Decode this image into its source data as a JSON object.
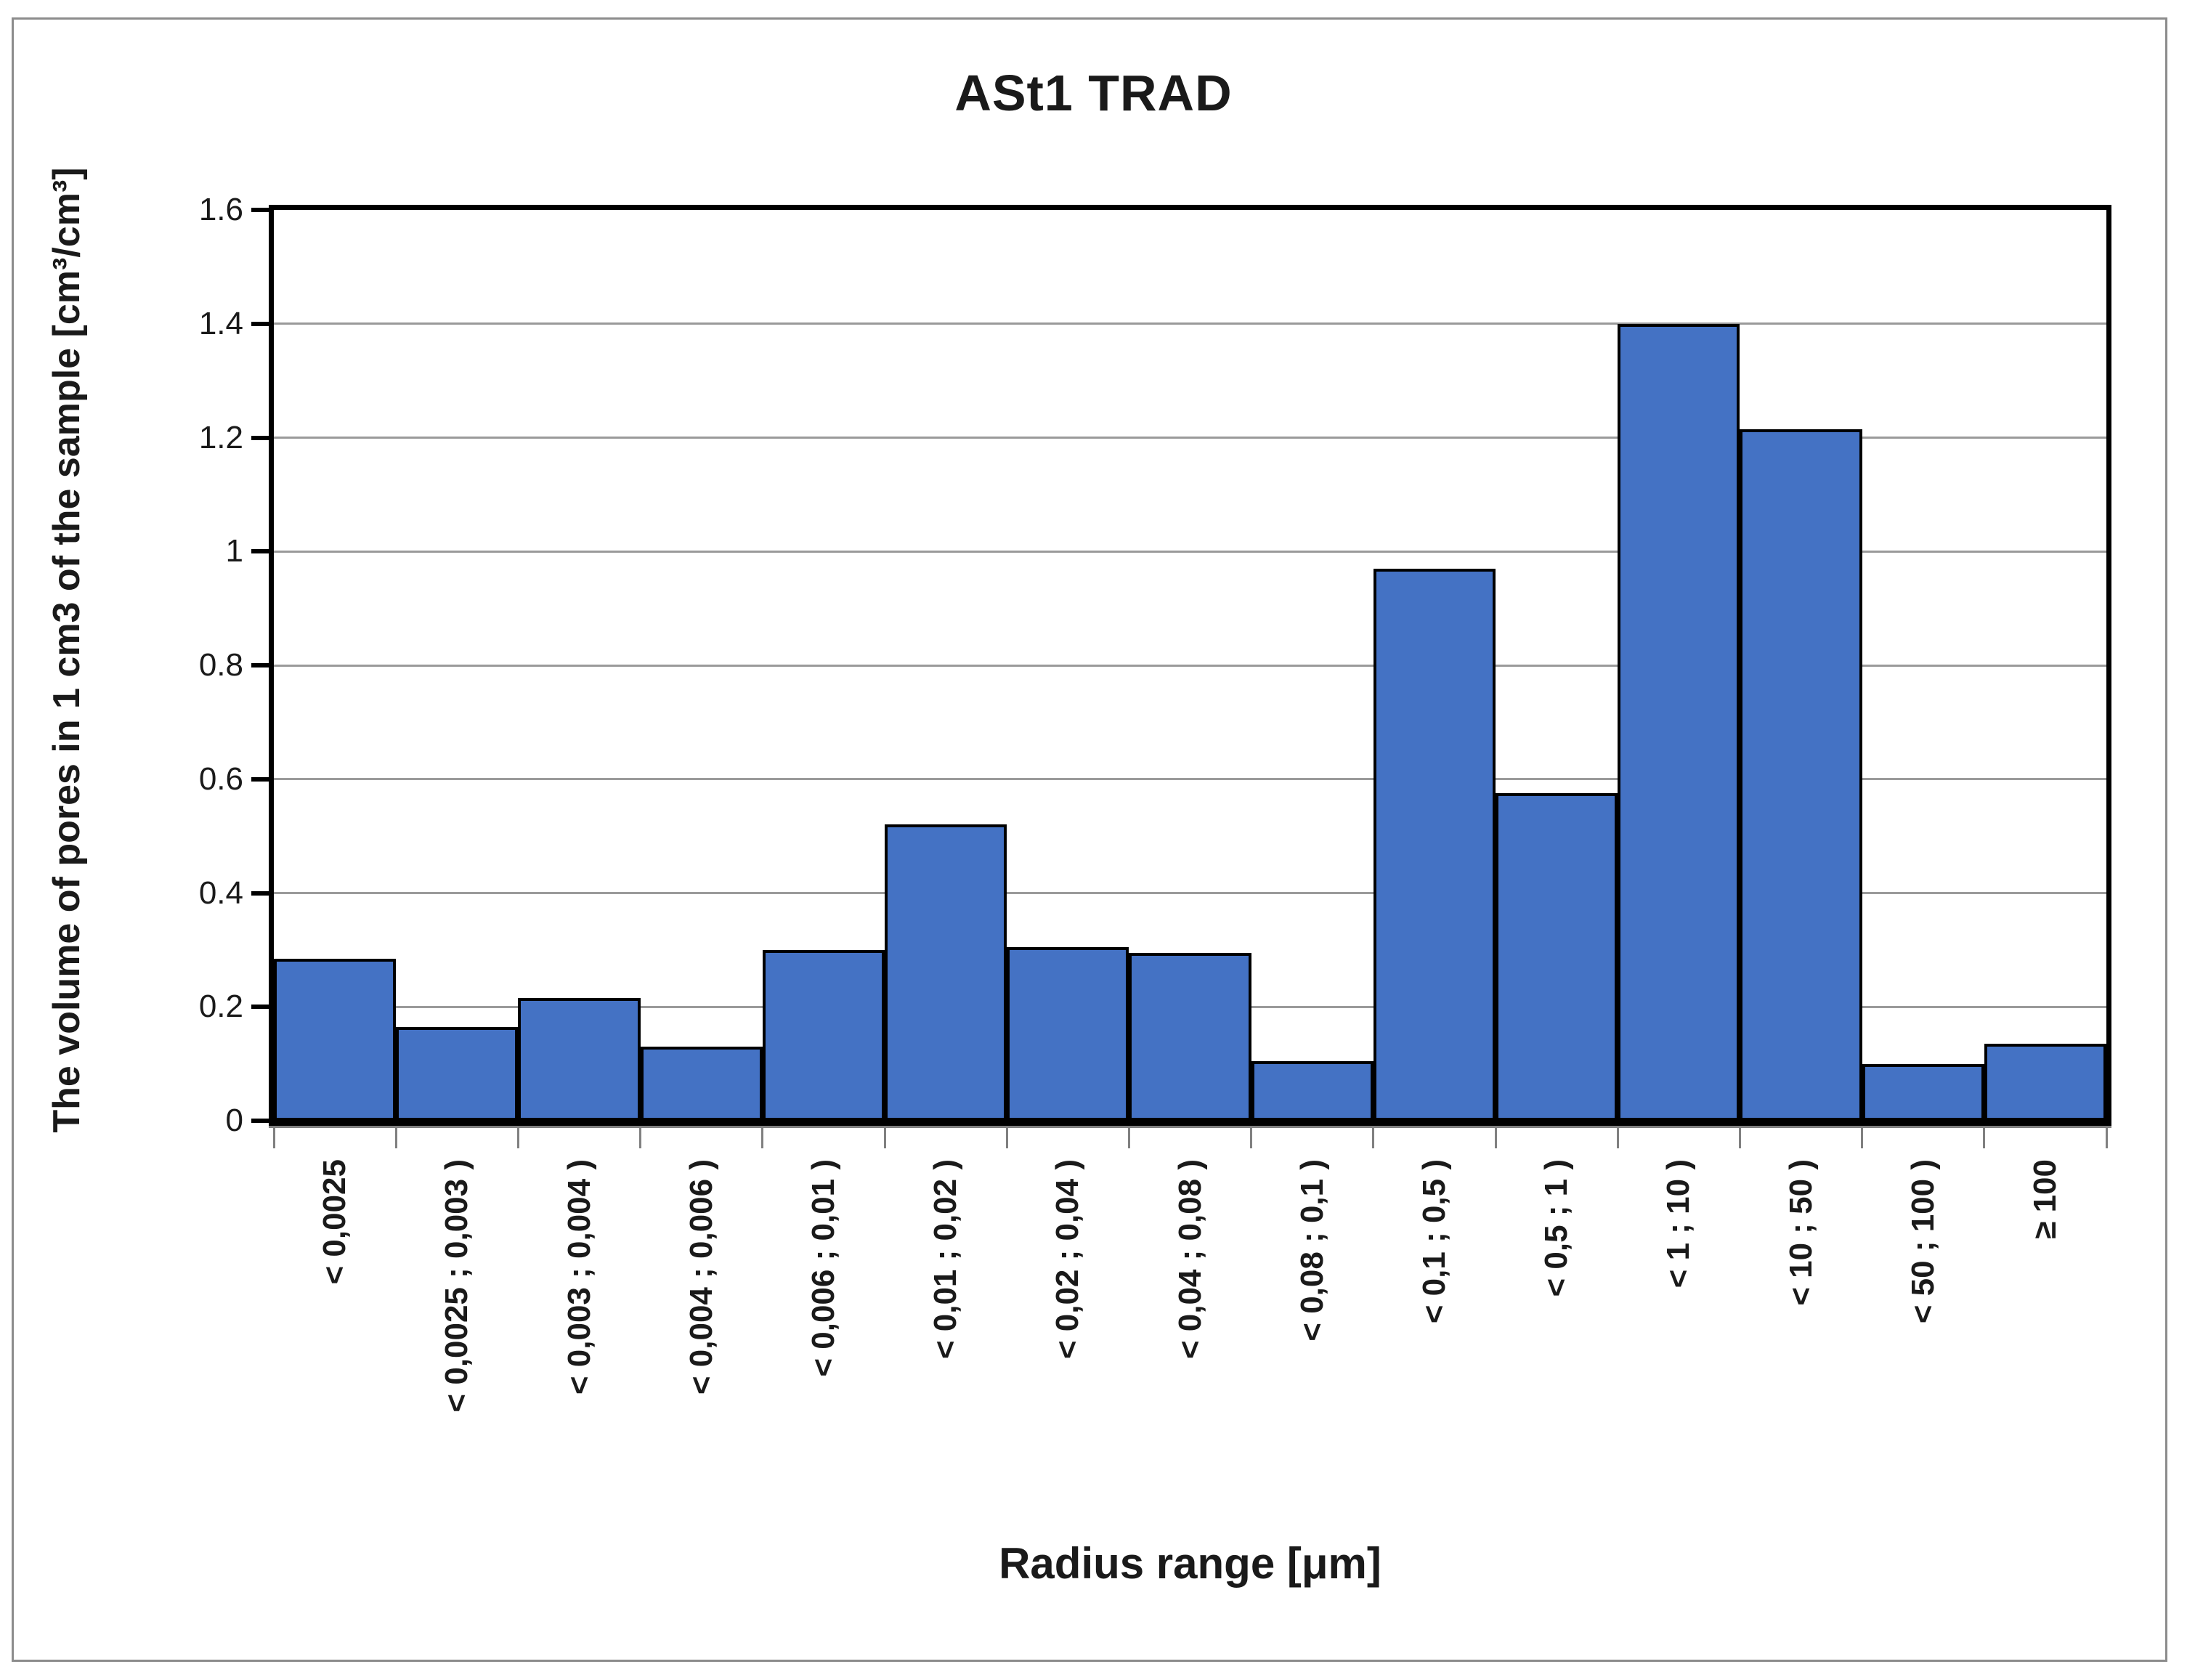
{
  "chart": {
    "title": "ASt1 TRAD",
    "x_axis_title": "Radius range [μm]",
    "y_axis_title": "The volume of pores in 1 cm3 of the sample [cm³/cm³]",
    "colors": {
      "bar_fill": "#4472C4",
      "bar_border": "#000000",
      "gridline": "#9a9a9a",
      "plot_border": "#000000",
      "category_axis": "#808080",
      "outer_frame": "#8c8c8c",
      "text": "#1a1a1a"
    }
  },
  "chart_data": {
    "type": "bar",
    "title": "ASt1 TRAD",
    "xlabel": "Radius range [μm]",
    "ylabel": "The volume of pores in 1 cm3 of the sample [cm³/cm³]",
    "categories": [
      "< 0,0025",
      "< 0,0025 ; 0,003 )",
      "< 0,003 ; 0,004 )",
      "< 0,004 ; 0,006 )",
      "< 0,006 ; 0,01 )",
      "< 0,01 ; 0,02 )",
      "< 0,02 ; 0,04 )",
      "< 0,04 ; 0,08 )",
      "< 0,08 ; 0,1 )",
      "< 0,1 ; 0,5 )",
      "< 0,5 ; 1 )",
      "< 1 ; 10 )",
      "< 10 ; 50 )",
      "< 50 ; 100 )",
      "≥ 100"
    ],
    "values": [
      0.285,
      0.165,
      0.215,
      0.13,
      0.3,
      0.52,
      0.305,
      0.295,
      0.105,
      0.97,
      0.575,
      1.4,
      1.215,
      0.1,
      0.135
    ],
    "ylim": [
      0,
      1.6
    ],
    "ytick_step": 0.2,
    "ytick_labels": [
      "0",
      "0.2",
      "0.4",
      "0.6",
      "0.8",
      "1",
      "1.2",
      "1.4",
      "1.6"
    ],
    "grid": true,
    "legend": false,
    "bar_gap": 0
  }
}
